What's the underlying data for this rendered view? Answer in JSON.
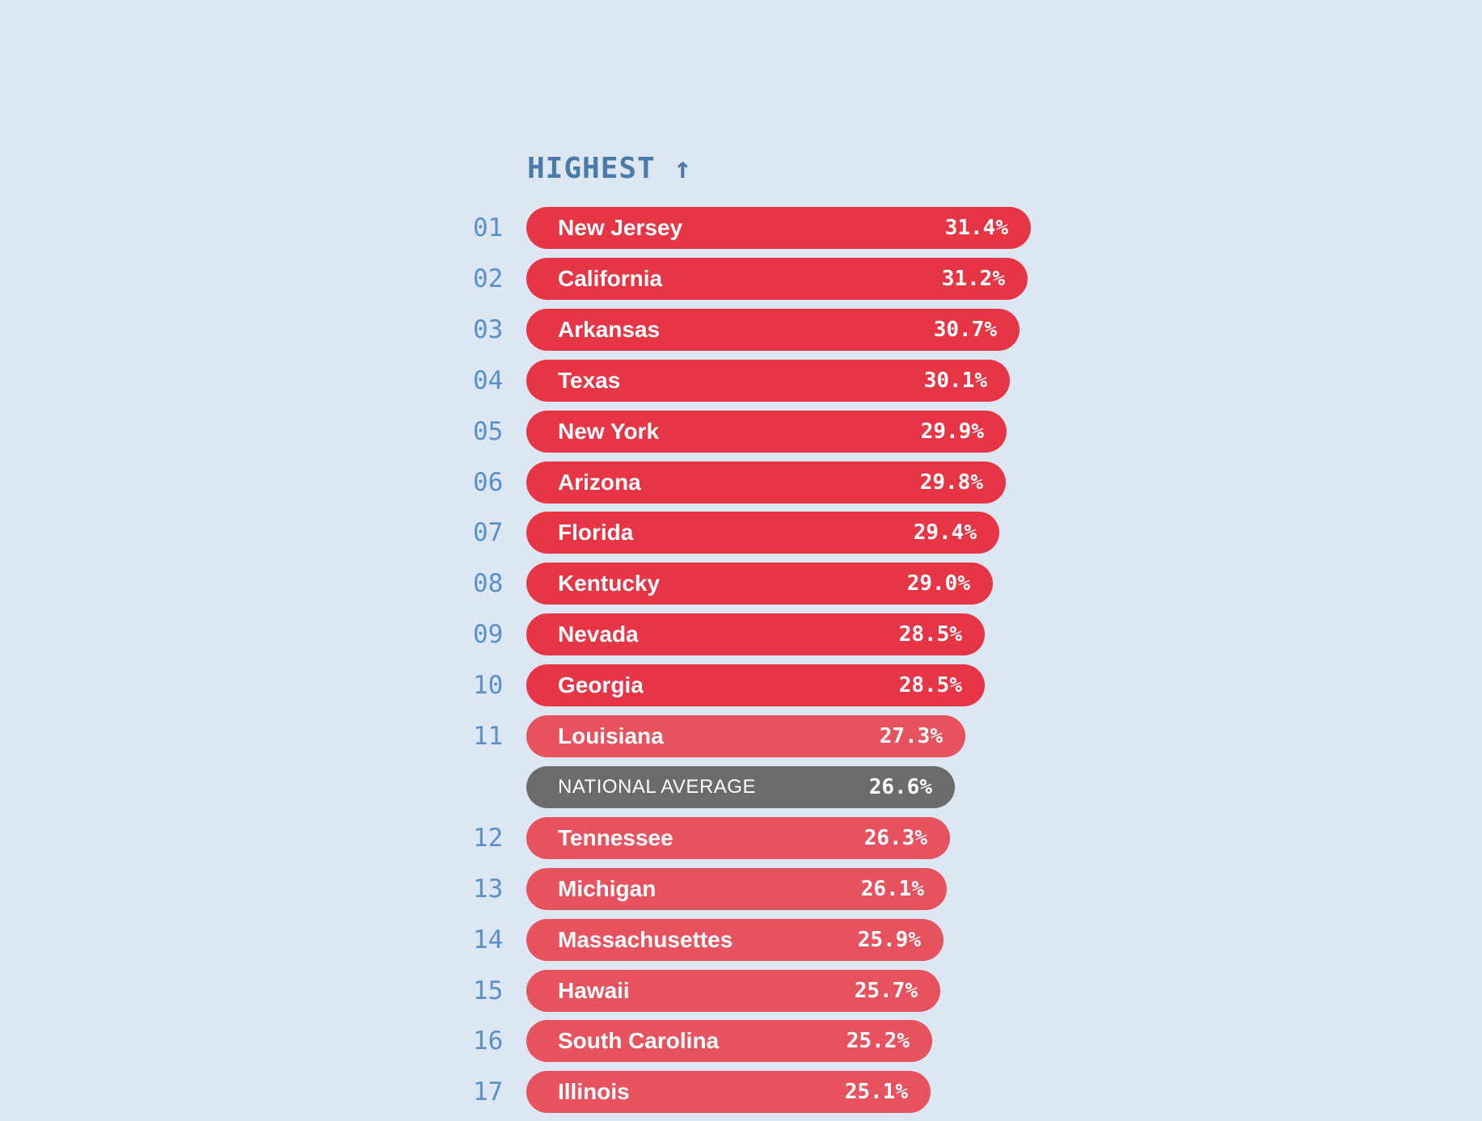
{
  "chart_data": {
    "type": "bar",
    "orientation": "horizontal",
    "title": "HIGHEST ↑",
    "colors": {
      "top_ten": "#e63545",
      "rest": "#e6535f",
      "average": "#6b6b6b",
      "rank_text": "#5b8fc8",
      "heading_text": "#4a7aa8",
      "background": "#dce7f3"
    },
    "rows": [
      {
        "rank": "01",
        "name": "New Jersey",
        "value": 31.4,
        "label": "31.4%",
        "group": "top_ten"
      },
      {
        "rank": "02",
        "name": "California",
        "value": 31.2,
        "label": "31.2%",
        "group": "top_ten"
      },
      {
        "rank": "03",
        "name": "Arkansas",
        "value": 30.7,
        "label": "30.7%",
        "group": "top_ten"
      },
      {
        "rank": "04",
        "name": "Texas",
        "value": 30.1,
        "label": "30.1%",
        "group": "top_ten"
      },
      {
        "rank": "05",
        "name": "New York",
        "value": 29.9,
        "label": "29.9%",
        "group": "top_ten"
      },
      {
        "rank": "06",
        "name": "Arizona",
        "value": 29.8,
        "label": "29.8%",
        "group": "top_ten"
      },
      {
        "rank": "07",
        "name": "Florida",
        "value": 29.4,
        "label": "29.4%",
        "group": "top_ten"
      },
      {
        "rank": "08",
        "name": "Kentucky",
        "value": 29.0,
        "label": "29.0%",
        "group": "top_ten"
      },
      {
        "rank": "09",
        "name": "Nevada",
        "value": 28.5,
        "label": "28.5%",
        "group": "top_ten"
      },
      {
        "rank": "10",
        "name": "Georgia",
        "value": 28.5,
        "label": "28.5%",
        "group": "top_ten"
      },
      {
        "rank": "11",
        "name": "Louisiana",
        "value": 27.3,
        "label": "27.3%",
        "group": "rest"
      },
      {
        "rank": "",
        "name": "NATIONAL AVERAGE",
        "value": 26.6,
        "label": "26.6%",
        "group": "average"
      },
      {
        "rank": "12",
        "name": "Tennessee",
        "value": 26.3,
        "label": "26.3%",
        "group": "rest"
      },
      {
        "rank": "13",
        "name": "Michigan",
        "value": 26.1,
        "label": "26.1%",
        "group": "rest"
      },
      {
        "rank": "14",
        "name": "Massachusettes",
        "value": 25.9,
        "label": "25.9%",
        "group": "rest"
      },
      {
        "rank": "15",
        "name": "Hawaii",
        "value": 25.7,
        "label": "25.7%",
        "group": "rest"
      },
      {
        "rank": "16",
        "name": "South Carolina",
        "value": 25.2,
        "label": "25.2%",
        "group": "rest"
      },
      {
        "rank": "17",
        "name": "Illinois",
        "value": 25.1,
        "label": "25.1%",
        "group": "rest"
      }
    ]
  }
}
